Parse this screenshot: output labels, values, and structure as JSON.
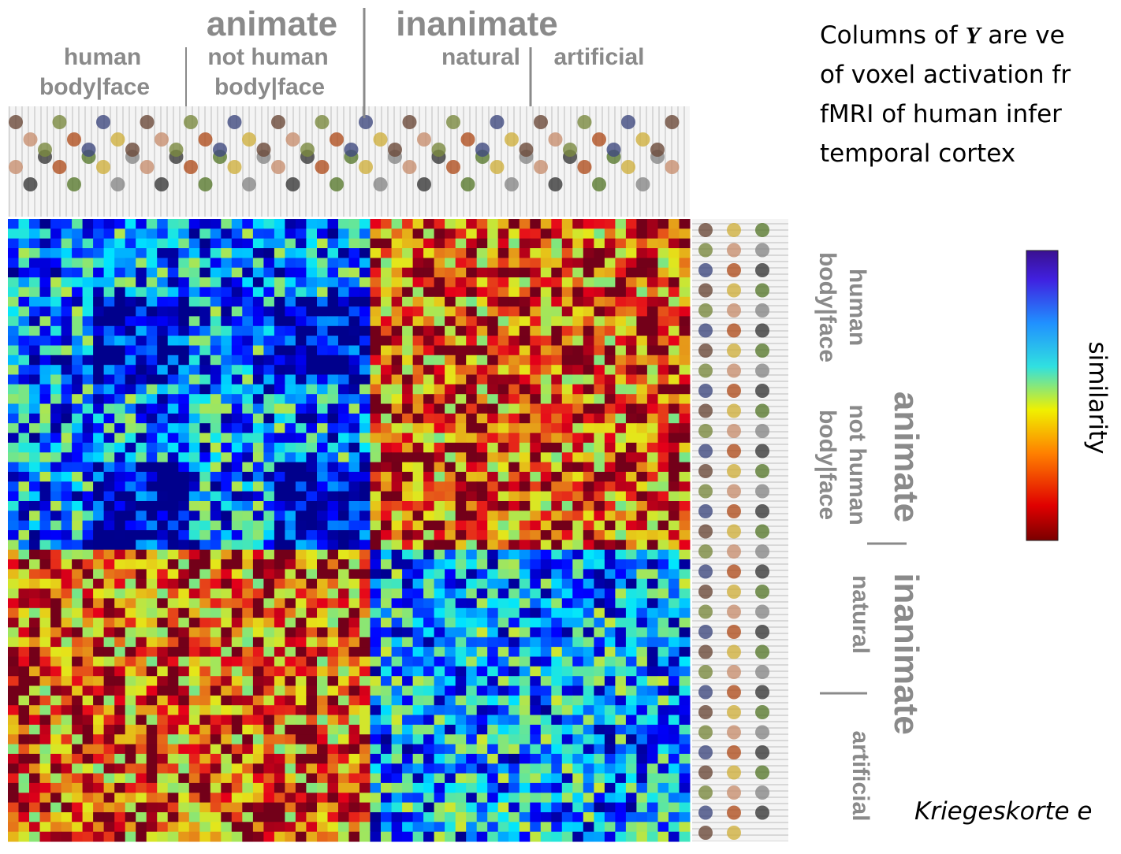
{
  "matrix_labels": {
    "top": {
      "animate": "animate",
      "inanimate": "inanimate",
      "human": "human",
      "not_human": "not human",
      "natural": "natural",
      "artificial": "artificial",
      "body_face_1": "body|face",
      "body_face_2": "body|face"
    },
    "right": {
      "animate": "animate",
      "inanimate": "inanimate",
      "human": "human",
      "not_human": "not human",
      "natural": "natural",
      "artificial": "artificial",
      "body_face_1": "body|face",
      "body_face_2": "body|face"
    }
  },
  "description": {
    "line1_start": "Columns of ",
    "line1_symbol": "Y",
    "line1_end": " are ve",
    "line2": "of voxel activation fr",
    "line3": "fMRI of human infer",
    "line4": "temporal cortex"
  },
  "colorbar_label": "similarity",
  "citation": "Kriegeskorte e"
}
